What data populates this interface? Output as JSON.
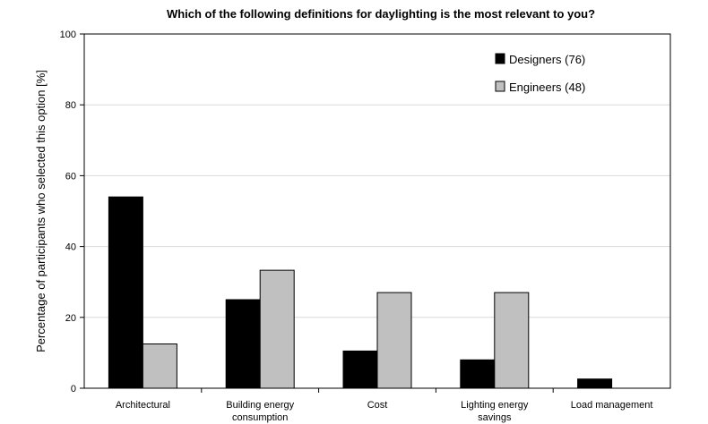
{
  "chart_data": {
    "type": "bar",
    "title": "Which of the following definitions for daylighting is the most relevant to you?",
    "xlabel": "",
    "ylabel": "Percentage of participants who selected this option [%]",
    "ylim": [
      0,
      100
    ],
    "yticks": [
      "0",
      "20",
      "40",
      "60",
      "80",
      "100"
    ],
    "categories": [
      [
        "Architectural"
      ],
      [
        "Building energy",
        "consumption"
      ],
      [
        "Cost"
      ],
      [
        "Lighting energy",
        "savings"
      ],
      [
        "Load management"
      ]
    ],
    "series": [
      {
        "name": "Designers (76)",
        "color": "#000000",
        "values": [
          54,
          25,
          10.5,
          8,
          2.6
        ]
      },
      {
        "name": "Engineers (48)",
        "color": "#c0c0c0",
        "values": [
          12.5,
          33.3,
          27,
          27,
          0
        ]
      }
    ],
    "grid": true,
    "legend_position": "top-right"
  }
}
